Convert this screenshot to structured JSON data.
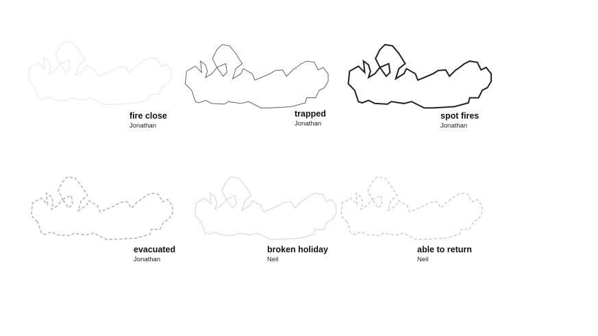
{
  "items": [
    {
      "title": "fire close",
      "author": "Jonathan",
      "outline": "faint"
    },
    {
      "title": "trapped",
      "author": "Jonathan",
      "outline": "thin"
    },
    {
      "title": "spot fires",
      "author": "Jonathan",
      "outline": "bold"
    },
    {
      "title": "evacuated",
      "author": "Jonathan",
      "outline": "dashed"
    },
    {
      "title": "broken holiday",
      "author": "Neil",
      "outline": "faint-thin"
    },
    {
      "title": "able to return",
      "author": "Neil",
      "outline": "dashed-faint"
    }
  ],
  "colors": {
    "faint": "#e6e6e6",
    "thin": "#555555",
    "bold": "#222222",
    "dashed": "#b9b9b9",
    "faint_thin": "#cfcfcf",
    "dashed_faint": "#c6c6c6"
  }
}
